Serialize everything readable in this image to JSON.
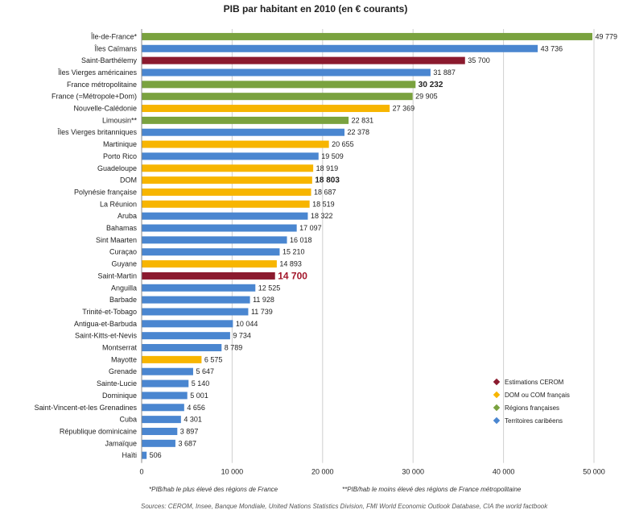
{
  "chart_data": {
    "type": "bar",
    "orientation": "horizontal",
    "title": "PIB par habitant en 2010 (en € courants)",
    "xlim": [
      0,
      50000
    ],
    "xticks": [
      "0",
      "10 000",
      "20 000",
      "30 000",
      "40 000",
      "50 000"
    ],
    "grid": "vertical",
    "legend_position": "bottom-right",
    "bars": [
      {
        "label": "Île-de-France*",
        "value": 49779,
        "value_label": "49 779",
        "group": "region",
        "bold": false
      },
      {
        "label": "Îles Caïmans",
        "value": 43736,
        "value_label": "43 736",
        "group": "caribbean",
        "bold": false
      },
      {
        "label": "Saint-Barthélemy",
        "value": 35700,
        "value_label": "35 700",
        "group": "cerom",
        "bold": false
      },
      {
        "label": "Îles Vierges américaines",
        "value": 31887,
        "value_label": "31 887",
        "group": "caribbean",
        "bold": false
      },
      {
        "label": "France métropolitaine",
        "value": 30232,
        "value_label": "30 232",
        "group": "region",
        "bold": true
      },
      {
        "label": "France (=Métropole+Dom)",
        "value": 29905,
        "value_label": "29 905",
        "group": "region",
        "bold": false
      },
      {
        "label": "Nouvelle-Calédonie",
        "value": 27369,
        "value_label": "27 369",
        "group": "dom",
        "bold": false
      },
      {
        "label": "Limousin**",
        "value": 22831,
        "value_label": "22 831",
        "group": "region",
        "bold": false
      },
      {
        "label": "Îles Vierges britanniques",
        "value": 22378,
        "value_label": "22 378",
        "group": "caribbean",
        "bold": false
      },
      {
        "label": "Martinique",
        "value": 20655,
        "value_label": "20 655",
        "group": "dom",
        "bold": false
      },
      {
        "label": "Porto Rico",
        "value": 19509,
        "value_label": "19 509",
        "group": "caribbean",
        "bold": false
      },
      {
        "label": "Guadeloupe",
        "value": 18919,
        "value_label": "18 919",
        "group": "dom",
        "bold": false
      },
      {
        "label": "DOM",
        "value": 18803,
        "value_label": "18 803",
        "group": "dom",
        "bold": true
      },
      {
        "label": "Polynésie française",
        "value": 18687,
        "value_label": "18 687",
        "group": "dom",
        "bold": false
      },
      {
        "label": "La Réunion",
        "value": 18519,
        "value_label": "18 519",
        "group": "dom",
        "bold": false
      },
      {
        "label": "Aruba",
        "value": 18322,
        "value_label": "18 322",
        "group": "caribbean",
        "bold": false
      },
      {
        "label": "Bahamas",
        "value": 17097,
        "value_label": "17 097",
        "group": "caribbean",
        "bold": false
      },
      {
        "label": "Sint Maarten",
        "value": 16018,
        "value_label": "16 018",
        "group": "caribbean",
        "bold": false
      },
      {
        "label": "Curaçao",
        "value": 15210,
        "value_label": "15 210",
        "group": "caribbean",
        "bold": false
      },
      {
        "label": "Guyane",
        "value": 14893,
        "value_label": "14 893",
        "group": "dom",
        "bold": false
      },
      {
        "label": "Saint-Martin",
        "value": 14700,
        "value_label": "14 700",
        "group": "cerom",
        "bold": true,
        "highlight": true
      },
      {
        "label": "Anguilla",
        "value": 12525,
        "value_label": "12 525",
        "group": "caribbean",
        "bold": false
      },
      {
        "label": "Barbade",
        "value": 11928,
        "value_label": "11 928",
        "group": "caribbean",
        "bold": false
      },
      {
        "label": "Trinité-et-Tobago",
        "value": 11739,
        "value_label": "11 739",
        "group": "caribbean",
        "bold": false
      },
      {
        "label": "Antigua-et-Barbuda",
        "value": 10044,
        "value_label": "10 044",
        "group": "caribbean",
        "bold": false
      },
      {
        "label": "Saint-Kitts-et-Nevis",
        "value": 9734,
        "value_label": "9 734",
        "group": "caribbean",
        "bold": false
      },
      {
        "label": "Montserrat",
        "value": 8789,
        "value_label": "8 789",
        "group": "caribbean",
        "bold": false
      },
      {
        "label": "Mayotte",
        "value": 6575,
        "value_label": "6 575",
        "group": "dom",
        "bold": false
      },
      {
        "label": "Grenade",
        "value": 5647,
        "value_label": "5 647",
        "group": "caribbean",
        "bold": false
      },
      {
        "label": "Sainte-Lucie",
        "value": 5140,
        "value_label": "5 140",
        "group": "caribbean",
        "bold": false
      },
      {
        "label": "Dominique",
        "value": 5001,
        "value_label": "5 001",
        "group": "caribbean",
        "bold": false
      },
      {
        "label": "Saint-Vincent-et-les Grenadines",
        "value": 4656,
        "value_label": "4 656",
        "group": "caribbean",
        "bold": false
      },
      {
        "label": "Cuba",
        "value": 4301,
        "value_label": "4 301",
        "group": "caribbean",
        "bold": false
      },
      {
        "label": "République dominicaine",
        "value": 3897,
        "value_label": "3 897",
        "group": "caribbean",
        "bold": false
      },
      {
        "label": "Jamaïque",
        "value": 3687,
        "value_label": "3 687",
        "group": "caribbean",
        "bold": false
      },
      {
        "label": "Haïti",
        "value": 506,
        "value_label": "506",
        "group": "caribbean",
        "bold": false
      }
    ],
    "legend": [
      {
        "key": "cerom",
        "label": "Estimations CEROM",
        "color": "#8b1a2e"
      },
      {
        "key": "dom",
        "label": "DOM ou COM français",
        "color": "#f7b500"
      },
      {
        "key": "region",
        "label": "Régions françaises",
        "color": "#7aa23f"
      },
      {
        "key": "caribbean",
        "label": "Territoires caribéens",
        "color": "#4a86d0"
      }
    ],
    "highlight_color": "#a3162a"
  },
  "footnotes": {
    "left": "*PIB/hab le plus élevé des régions de France",
    "right": "**PIB/hab le moins élevé des régions de France métropolitaine"
  },
  "sources": "Sources: CEROM, Insee, Banque Mondiale, United Nations Statistics Division, FMI World Economic Outlook Database, CIA the world factbook"
}
